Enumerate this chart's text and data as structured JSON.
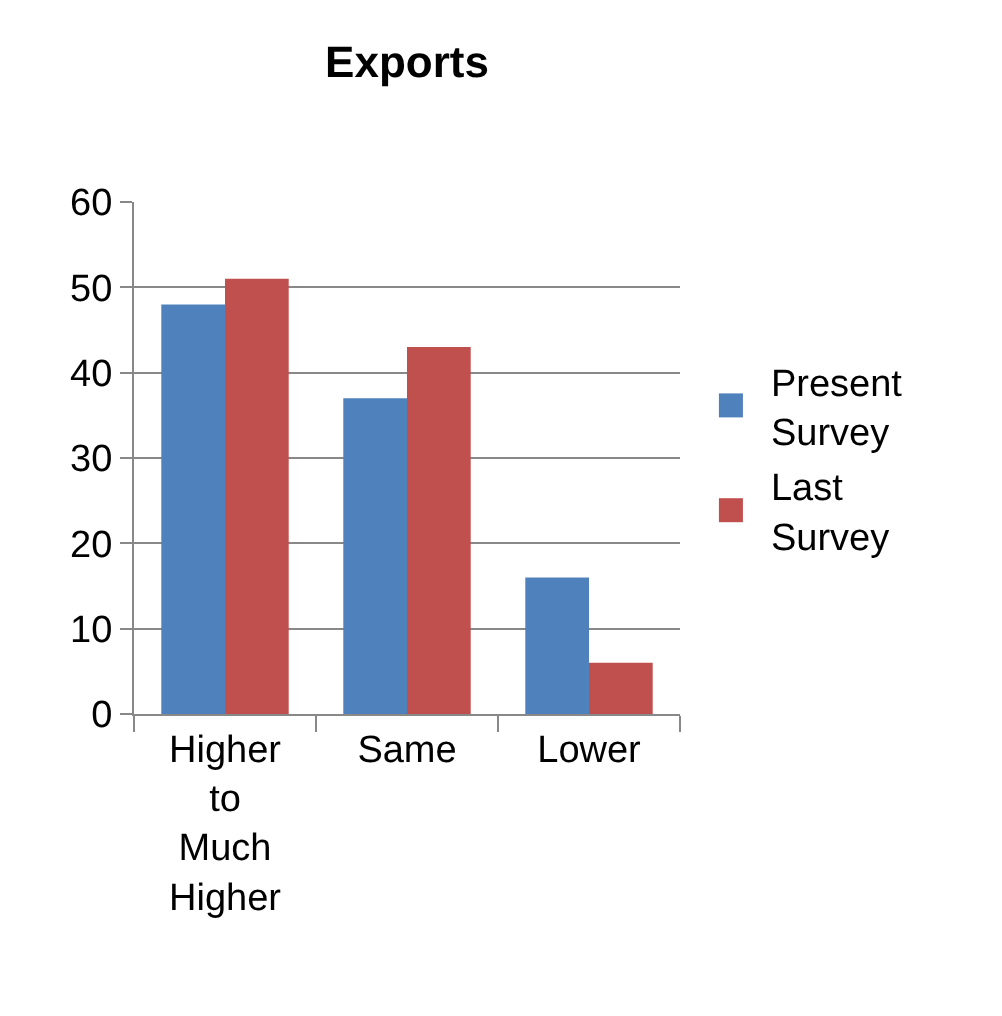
{
  "chart_data": {
    "type": "bar",
    "title": "Exports",
    "categories": [
      "Higher to Much Higher",
      "Same",
      "Lower"
    ],
    "series": [
      {
        "name": "Present Survey",
        "color": "#4f81bd",
        "values": [
          48,
          37,
          16
        ]
      },
      {
        "name": "Last Survey",
        "color": "#c0504d",
        "values": [
          51,
          43,
          6
        ]
      }
    ],
    "ylim": [
      0,
      60
    ],
    "yticks": [
      0,
      10,
      20,
      30,
      40,
      50,
      60
    ],
    "grid": "y",
    "legend": "right"
  }
}
